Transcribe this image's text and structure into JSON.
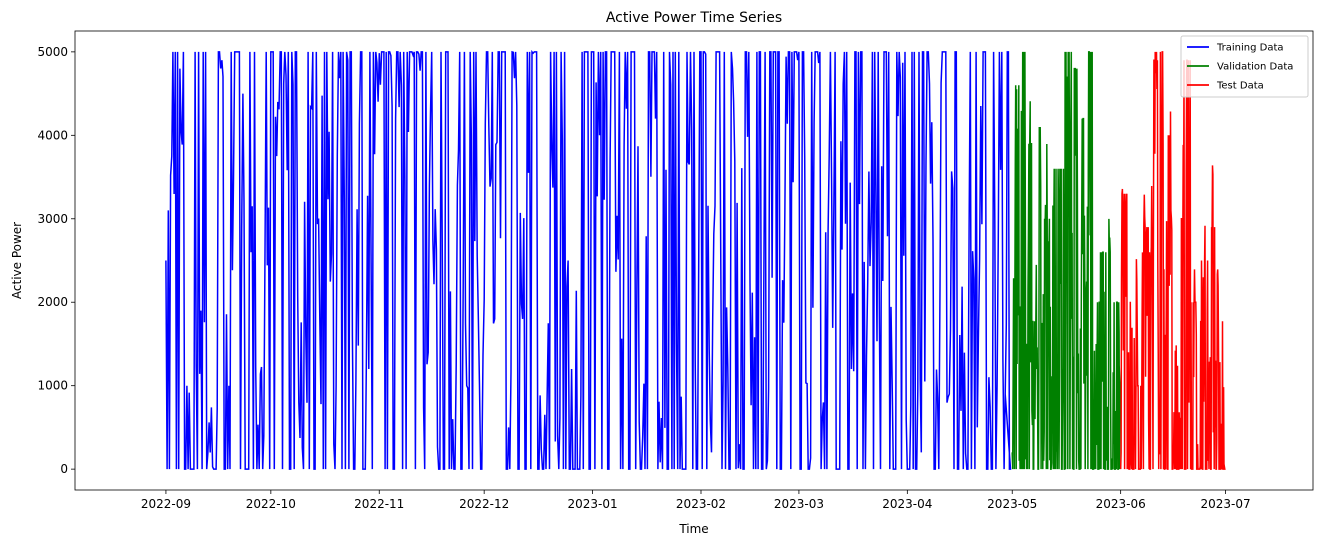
{
  "chart_data": {
    "type": "line",
    "title": "Active Power Time Series",
    "xlabel": "Time",
    "ylabel": "Active Power",
    "xlim": [
      "2022-08-06",
      "2023-07-26"
    ],
    "ylim": [
      -250,
      5250
    ],
    "x_ticks": [
      "2022-09",
      "2022-10",
      "2022-11",
      "2022-12",
      "2023-01",
      "2023-02",
      "2023-03",
      "2023-04",
      "2023-05",
      "2023-06",
      "2023-07"
    ],
    "y_ticks": [
      0,
      1000,
      2000,
      3000,
      4000,
      5000
    ],
    "grid": false,
    "legend_position": "top-right",
    "series": [
      {
        "name": "Training Data",
        "color": "#0000ff",
        "start": "2022-09-01",
        "end": "2023-04-30",
        "x": [
          "2022-09-01",
          "2022-09-03",
          "2022-09-05",
          "2022-09-07",
          "2022-09-09",
          "2022-09-11",
          "2022-09-13",
          "2022-09-15",
          "2022-09-17",
          "2022-09-19",
          "2022-09-21",
          "2022-09-23",
          "2022-09-25",
          "2022-09-27",
          "2022-09-29",
          "2022-10-01",
          "2022-10-03",
          "2022-10-05",
          "2022-10-07",
          "2022-10-09",
          "2022-10-11",
          "2022-10-13",
          "2022-10-15",
          "2022-10-17",
          "2022-10-19",
          "2022-10-21",
          "2022-10-23",
          "2022-10-25",
          "2022-10-27",
          "2022-10-29",
          "2022-10-31",
          "2022-11-02",
          "2022-11-04",
          "2022-11-06",
          "2022-11-08",
          "2022-11-10",
          "2022-11-12",
          "2022-11-14",
          "2022-11-16",
          "2022-11-18",
          "2022-11-20",
          "2022-11-22",
          "2022-11-24",
          "2022-11-26",
          "2022-11-28",
          "2022-11-30",
          "2022-12-02",
          "2022-12-04",
          "2022-12-06",
          "2022-12-08",
          "2022-12-10",
          "2022-12-12",
          "2022-12-14",
          "2022-12-16",
          "2022-12-18",
          "2022-12-20",
          "2022-12-22",
          "2022-12-24",
          "2022-12-26",
          "2022-12-28",
          "2022-12-30",
          "2023-01-01",
          "2023-01-03",
          "2023-01-05",
          "2023-01-07",
          "2023-01-09",
          "2023-01-11",
          "2023-01-13",
          "2023-01-15",
          "2023-01-17",
          "2023-01-19",
          "2023-01-21",
          "2023-01-23",
          "2023-01-25",
          "2023-01-27",
          "2023-01-29",
          "2023-01-31",
          "2023-02-02",
          "2023-02-04",
          "2023-02-06",
          "2023-02-08",
          "2023-02-10",
          "2023-02-12",
          "2023-02-14",
          "2023-02-16",
          "2023-02-18",
          "2023-02-20",
          "2023-02-22",
          "2023-02-24",
          "2023-02-26",
          "2023-02-28",
          "2023-03-02",
          "2023-03-04",
          "2023-03-06",
          "2023-03-08",
          "2023-03-10",
          "2023-03-12",
          "2023-03-14",
          "2023-03-16",
          "2023-03-18",
          "2023-03-20",
          "2023-03-22",
          "2023-03-24",
          "2023-03-26",
          "2023-03-28",
          "2023-03-30",
          "2023-04-01",
          "2023-04-03",
          "2023-04-05",
          "2023-04-07",
          "2023-04-09",
          "2023-04-11",
          "2023-04-13",
          "2023-04-15",
          "2023-04-17",
          "2023-04-19",
          "2023-04-21",
          "2023-04-23",
          "2023-04-25",
          "2023-04-27",
          "2023-04-29"
        ],
        "y": [
          2500,
          5000,
          4800,
          1000,
          0,
          1900,
          200,
          0,
          4900,
          1000,
          5000,
          4500,
          5000,
          0,
          400,
          5000,
          4400,
          5000,
          5000,
          800,
          1600,
          5000,
          1800,
          5000,
          300,
          5000,
          4900,
          0,
          5000,
          1200,
          5000,
          5000,
          5000,
          5000,
          5000,
          5000,
          5000,
          0,
          5000,
          0,
          5000,
          600,
          5000,
          1000,
          5000,
          0,
          5000,
          1800,
          5000,
          500,
          5000,
          1800,
          5000,
          5000,
          0,
          5000,
          400,
          5000,
          1200,
          0,
          5000,
          5000,
          4000,
          5000,
          5000,
          0,
          5000,
          5000,
          0,
          5000,
          4200,
          0,
          5000,
          1500,
          0,
          5000,
          0,
          5000,
          200,
          5000,
          0,
          4800,
          300,
          5000,
          0,
          5000,
          100,
          5000,
          0,
          5000,
          5000,
          5000,
          0,
          5000,
          800,
          5000,
          0,
          5000,
          1200,
          5000,
          0,
          5000,
          1800,
          5000,
          0,
          4700,
          0,
          5000,
          200,
          5000,
          0,
          5000,
          900,
          5000,
          0,
          5000,
          500,
          5000,
          0,
          2800,
          900
        ]
      },
      {
        "name": "Validation Data",
        "color": "#008000",
        "start": "2023-05-01",
        "end": "2023-05-31",
        "x": [
          "2023-05-01",
          "2023-05-02",
          "2023-05-03",
          "2023-05-04",
          "2023-05-05",
          "2023-05-06",
          "2023-05-07",
          "2023-05-08",
          "2023-05-09",
          "2023-05-10",
          "2023-05-11",
          "2023-05-12",
          "2023-05-13",
          "2023-05-14",
          "2023-05-15",
          "2023-05-16",
          "2023-05-17",
          "2023-05-18",
          "2023-05-19",
          "2023-05-20",
          "2023-05-21",
          "2023-05-22",
          "2023-05-23",
          "2023-05-24",
          "2023-05-25",
          "2023-05-26",
          "2023-05-27",
          "2023-05-28",
          "2023-05-29",
          "2023-05-30",
          "2023-05-31"
        ],
        "y": [
          200,
          4600,
          100,
          5000,
          600,
          3900,
          0,
          1200,
          4100,
          100,
          3000,
          0,
          3600,
          900,
          3600,
          0,
          5000,
          1800,
          4800,
          100,
          4200,
          1000,
          5000,
          0,
          1500,
          2000,
          2600,
          100,
          2600,
          300,
          2000
        ]
      },
      {
        "name": "Test Data",
        "color": "#ff0000",
        "start": "2023-06-01",
        "end": "2023-06-30",
        "x": [
          "2023-06-01",
          "2023-06-02",
          "2023-06-03",
          "2023-06-04",
          "2023-06-05",
          "2023-06-06",
          "2023-06-07",
          "2023-06-08",
          "2023-06-09",
          "2023-06-10",
          "2023-06-11",
          "2023-06-12",
          "2023-06-13",
          "2023-06-14",
          "2023-06-15",
          "2023-06-16",
          "2023-06-17",
          "2023-06-18",
          "2023-06-19",
          "2023-06-20",
          "2023-06-21",
          "2023-06-22",
          "2023-06-23",
          "2023-06-24",
          "2023-06-25",
          "2023-06-26",
          "2023-06-27",
          "2023-06-28",
          "2023-06-29",
          "2023-06-30"
        ],
        "y": [
          0,
          3300,
          1400,
          100,
          600,
          1000,
          400,
          2900,
          600,
          2600,
          4900,
          800,
          5000,
          1500,
          4000,
          200,
          0,
          600,
          3000,
          4900,
          0,
          2000,
          300,
          0,
          2500,
          100,
          2900,
          500,
          1300,
          200
        ]
      }
    ]
  }
}
